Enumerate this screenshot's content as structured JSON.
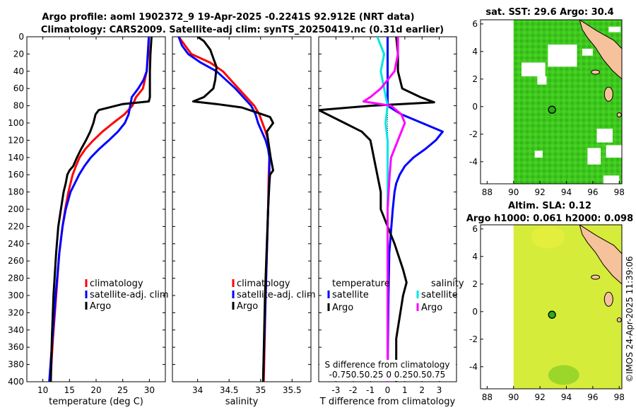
{
  "title_line1": "Argo profile: aoml 1902372_9 19-Apr-2025 -0.2241S 92.912E (NRT data)",
  "title_line2": "Climatology: CARS2009. Satellite-adj clim: synTS_20250419.nc (0.31d earlier)",
  "watermark": "©IMOS 24-Apr-2025 11:39:06",
  "colors": {
    "clim": "#ff0000",
    "sat": "#0000ff",
    "argo": "#000000",
    "sal_sat": "#00e5e5",
    "sal_argo": "#ff00ff",
    "land": "#f5c29b",
    "sst_green": "#3ec81e",
    "sla_yellow": "#d6ec3a"
  },
  "chart_data": [
    {
      "type": "line",
      "name": "temperature",
      "xlabel": "temperature (deg C)",
      "xlim": [
        7,
        33
      ],
      "ylim": [
        400,
        0
      ],
      "xticks": [
        10,
        15,
        20,
        25,
        30
      ],
      "yticks": [
        0,
        20,
        40,
        60,
        80,
        100,
        120,
        140,
        160,
        180,
        200,
        220,
        240,
        260,
        280,
        300,
        320,
        340,
        360,
        380,
        400
      ],
      "legend": [
        "climatology",
        "satellite-adj. clim",
        "Argo"
      ],
      "series": [
        {
          "name": "climatology",
          "color": "#ff0000",
          "depth": [
            0,
            20,
            40,
            60,
            70,
            80,
            90,
            100,
            110,
            120,
            130,
            140,
            150,
            160,
            170,
            180,
            200,
            220,
            250,
            300,
            350,
            400
          ],
          "values": [
            29.9,
            29.8,
            29.5,
            28.8,
            27.5,
            26.8,
            25.3,
            23.2,
            21.2,
            19.5,
            18.0,
            16.9,
            16.2,
            15.6,
            15.2,
            14.8,
            14.2,
            13.7,
            13.1,
            12.5,
            11.9,
            11.4
          ]
        },
        {
          "name": "satellite-adj. clim",
          "color": "#0000ff",
          "depth": [
            0,
            20,
            40,
            50,
            60,
            70,
            80,
            90,
            100,
            110,
            120,
            130,
            140,
            150,
            160,
            180,
            200,
            220,
            250,
            300,
            350,
            400
          ],
          "values": [
            29.9,
            29.7,
            29.5,
            28.9,
            27.9,
            26.7,
            26.4,
            26.1,
            25.4,
            24.1,
            22.4,
            20.6,
            19.0,
            17.8,
            16.8,
            15.2,
            14.3,
            13.7,
            13.1,
            12.4,
            11.8,
            11.2
          ]
        },
        {
          "name": "Argo",
          "color": "#000000",
          "depth": [
            0,
            20,
            40,
            60,
            70,
            75,
            78,
            85,
            90,
            100,
            110,
            120,
            130,
            140,
            150,
            155,
            160,
            170,
            180,
            200,
            220,
            250,
            300,
            350,
            400
          ],
          "values": [
            30.4,
            30.2,
            30.1,
            30.1,
            30.1,
            29.9,
            25.0,
            20.5,
            19.9,
            19.5,
            18.9,
            18.1,
            17.2,
            16.4,
            15.7,
            15.0,
            14.6,
            14.3,
            13.9,
            13.4,
            12.9,
            12.5,
            12.0,
            11.7,
            11.5
          ]
        }
      ]
    },
    {
      "type": "line",
      "name": "salinity",
      "xlabel": "salinity",
      "xlim": [
        33.6,
        35.8
      ],
      "ylim": [
        400,
        0
      ],
      "xticks": [
        34,
        34.5,
        35,
        35.5
      ],
      "legend": [
        "climatology",
        "satellite-adj. clim",
        "Argo"
      ],
      "series": [
        {
          "name": "climatology",
          "color": "#ff0000",
          "depth": [
            0,
            10,
            20,
            30,
            40,
            60,
            80,
            90,
            100,
            110,
            120,
            140,
            160,
            200,
            300,
            400
          ],
          "values": [
            33.7,
            33.8,
            33.9,
            34.2,
            34.4,
            34.65,
            34.9,
            34.98,
            35.03,
            35.08,
            35.12,
            35.14,
            35.13,
            35.12,
            35.08,
            35.05
          ]
        },
        {
          "name": "satellite-adj. clim",
          "color": "#0000ff",
          "depth": [
            0,
            10,
            20,
            30,
            40,
            60,
            80,
            90,
            100,
            110,
            120,
            130,
            140,
            160,
            200,
            300,
            400
          ],
          "values": [
            33.7,
            33.75,
            33.85,
            34.05,
            34.3,
            34.6,
            34.85,
            34.92,
            34.96,
            35.02,
            35.08,
            35.12,
            35.14,
            35.14,
            35.12,
            35.08,
            35.04
          ]
        },
        {
          "name": "Argo",
          "color": "#000000",
          "depth": [
            0,
            5,
            15,
            25,
            35,
            50,
            60,
            70,
            75,
            78,
            82,
            88,
            93,
            100,
            110,
            120,
            140,
            155,
            160,
            170,
            200,
            300,
            400
          ],
          "values": [
            34.0,
            34.1,
            34.2,
            34.25,
            34.3,
            34.28,
            34.25,
            34.1,
            33.93,
            34.3,
            34.7,
            34.95,
            35.15,
            35.2,
            35.1,
            35.12,
            35.16,
            35.2,
            35.15,
            35.14,
            35.12,
            35.07,
            35.04
          ]
        }
      ]
    },
    {
      "type": "line",
      "name": "difference",
      "xlabel": "T difference from climatology",
      "xlabel_top": "S difference from climatology",
      "top_ticks": "-0.750.50.25  0  0.250.50.75",
      "xlim": [
        -4,
        4
      ],
      "ylim": [
        400,
        0
      ],
      "xticks": [
        -3,
        -2,
        -1,
        0,
        1,
        2,
        3
      ],
      "legend_temperature_title": "temperature",
      "legend_salinity_title": "salinity",
      "legend": [
        "satellite",
        "Argo",
        "satellite",
        "Argo"
      ],
      "series": [
        {
          "name": "T satellite",
          "color": "#0000ff",
          "depth": [
            0,
            40,
            60,
            80,
            90,
            100,
            110,
            120,
            130,
            140,
            150,
            160,
            170,
            180,
            200,
            250,
            300,
            350,
            400
          ],
          "values": [
            0,
            0,
            0,
            0,
            0.8,
            2.0,
            3.2,
            2.8,
            2.2,
            1.5,
            1.0,
            0.7,
            0.5,
            0.4,
            0.3,
            0.1,
            0.05,
            0.02,
            0
          ]
        },
        {
          "name": "T Argo",
          "color": "#000000",
          "depth": [
            0,
            20,
            40,
            60,
            70,
            76,
            80,
            85,
            90,
            100,
            110,
            120,
            130,
            140,
            160,
            180,
            200,
            240,
            270,
            285,
            300,
            350,
            390,
            400
          ],
          "values": [
            0.5,
            0.6,
            0.6,
            0.85,
            1.9,
            2.7,
            -1.0,
            -4.0,
            -3.5,
            -2.5,
            -1.5,
            -1.0,
            -0.9,
            -0.8,
            -0.6,
            -0.4,
            -0.4,
            0.4,
            0.9,
            1.1,
            0.9,
            0.5,
            0.5,
            0.5
          ]
        },
        {
          "name": "S satellite",
          "color": "#00e5e5",
          "depth": [
            0,
            20,
            40,
            60,
            80,
            100,
            120,
            140,
            200,
            300,
            400
          ],
          "values": [
            -0.15,
            -0.05,
            -0.1,
            -0.05,
            0.0,
            -0.03,
            0.0,
            0.0,
            0.0,
            0.0,
            0.0
          ]
        },
        {
          "name": "S Argo",
          "color": "#ff00ff",
          "depth": [
            0,
            20,
            40,
            60,
            70,
            75,
            80,
            90,
            100,
            110,
            120,
            140,
            160,
            200,
            300,
            400
          ],
          "values": [
            0.15,
            0.15,
            0.1,
            -0.1,
            -0.25,
            -0.35,
            0.05,
            0.2,
            0.25,
            0.2,
            0.15,
            0.05,
            0.03,
            0.0,
            0.0,
            0.0
          ]
        }
      ]
    },
    {
      "type": "heatmap",
      "name": "sst_map",
      "title": "sat. SST: 29.6 Argo: 30.4",
      "xticks": [
        88,
        90,
        92,
        94,
        96,
        98
      ],
      "yticks": [
        6,
        4,
        2,
        0,
        -2,
        -4
      ],
      "xlim": [
        87.5,
        98.2
      ],
      "ylim": [
        -5.6,
        6.3
      ],
      "argo_position": [
        92.912,
        -0.2241
      ]
    },
    {
      "type": "heatmap",
      "name": "sla_map",
      "title_line1": "Altim. SLA: 0.12",
      "title_line2": "Argo h1000: 0.061 h2000: 0.098",
      "xticks": [
        88,
        90,
        92,
        94,
        96,
        98
      ],
      "yticks": [
        6,
        4,
        2,
        0,
        -2,
        -4
      ],
      "xlim": [
        87.5,
        98.2
      ],
      "ylim": [
        -5.6,
        6.3
      ],
      "argo_position": [
        92.912,
        -0.2241
      ]
    }
  ]
}
